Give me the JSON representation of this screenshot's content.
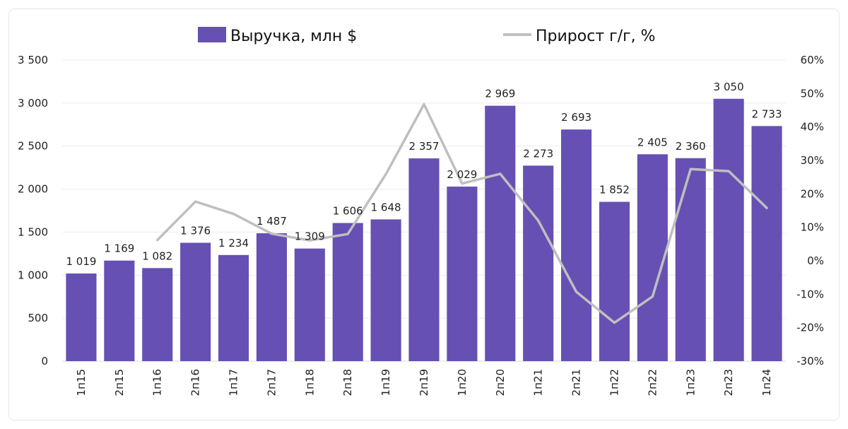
{
  "chart_data": {
    "type": "bar",
    "categories": [
      "1п15",
      "2п15",
      "1п16",
      "2п16",
      "1п17",
      "2п17",
      "1п18",
      "2п18",
      "1п19",
      "2п19",
      "1п20",
      "2п20",
      "1п21",
      "2п21",
      "1п22",
      "2п22",
      "1п23",
      "2п23",
      "1п24"
    ],
    "series": [
      {
        "name": "Выручка, млн $",
        "type": "bar",
        "axis": "left",
        "color": "#6650b4",
        "values": [
          1019,
          1169,
          1082,
          1376,
          1234,
          1487,
          1309,
          1606,
          1648,
          2357,
          2029,
          2969,
          2273,
          2693,
          1852,
          2405,
          2360,
          3050,
          2733
        ],
        "labels": [
          "1 019",
          "1 169",
          "1 082",
          "1 376",
          "1 234",
          "1 487",
          "1 309",
          "1 606",
          "1 648",
          "2 357",
          "2 029",
          "2 969",
          "2 273",
          "2 693",
          "1 852",
          "2 405",
          "2 360",
          "3 050",
          "2 733"
        ]
      },
      {
        "name": "Прирост г/г, %",
        "type": "line",
        "axis": "right",
        "color": "#bfbfbf",
        "values": [
          null,
          null,
          6.2,
          17.7,
          14.0,
          8.1,
          6.1,
          8.0,
          25.9,
          46.8,
          23.1,
          26.0,
          12.0,
          -9.3,
          -18.5,
          -10.7,
          27.4,
          26.8,
          15.8
        ]
      }
    ],
    "y_left": {
      "min": 0,
      "max": 3500,
      "ticks": [
        0,
        500,
        1000,
        1500,
        2000,
        2500,
        3000,
        3500
      ],
      "tick_labels": [
        "0",
        "500",
        "1 000",
        "1 500",
        "2 000",
        "2 500",
        "3 000",
        "3 500"
      ]
    },
    "y_right": {
      "min": -30,
      "max": 60,
      "ticks": [
        -30,
        -20,
        -10,
        0,
        10,
        20,
        30,
        40,
        50,
        60
      ],
      "tick_labels": [
        "-30%",
        "-20%",
        "-10%",
        "0%",
        "10%",
        "20%",
        "30%",
        "40%",
        "50%",
        "60%"
      ]
    },
    "grid": true,
    "legend_position": "top"
  }
}
